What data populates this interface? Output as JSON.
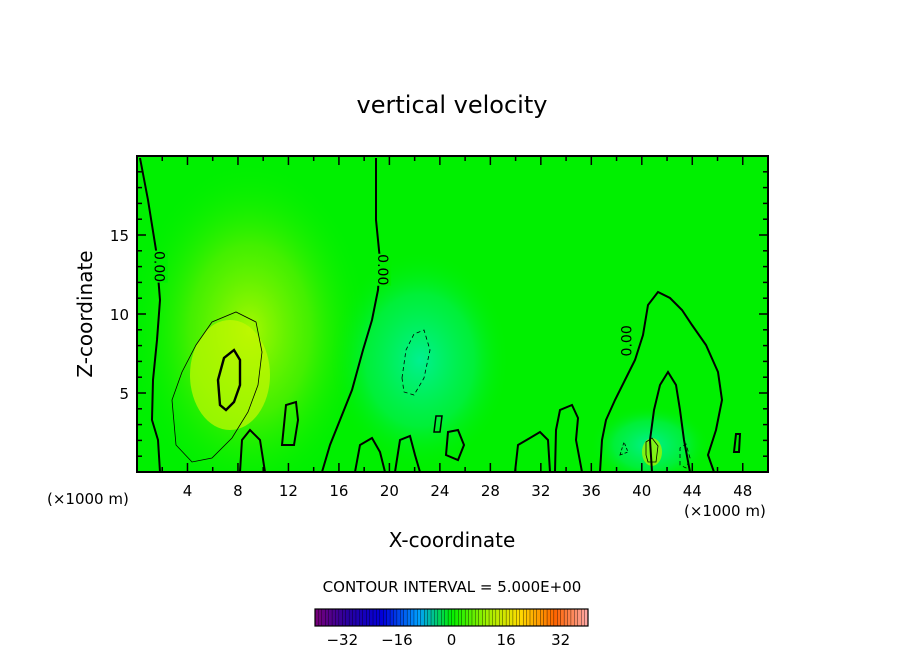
{
  "chart_data": {
    "type": "contour",
    "title": "vertical velocity",
    "xlabel": "X-coordinate",
    "ylabel": "Z-coordinate",
    "x_unit": "(×1000 m)",
    "xlim": [
      0,
      50
    ],
    "ylim": [
      0,
      20
    ],
    "x_ticks": [
      "4",
      "8",
      "12",
      "16",
      "20",
      "24",
      "28",
      "32",
      "36",
      "40",
      "44",
      "48"
    ],
    "y_ticks": [
      "5",
      "10",
      "15"
    ],
    "contour_interval_text": "CONTOUR INTERVAL = 5.000E+00",
    "contour_labels": [
      {
        "text": "0.00",
        "x": 1.8,
        "z": 13.0
      },
      {
        "text": "0.00",
        "x": 19.5,
        "z": 12.8
      },
      {
        "text": "0.00",
        "x": 38.8,
        "z": 8.3
      }
    ],
    "colorbar": {
      "min": -40,
      "max": 40,
      "ticks": [
        "−32",
        "−16",
        "0",
        "16",
        "32"
      ],
      "tick_values": [
        -32,
        -16,
        0,
        16,
        32
      ]
    },
    "max_region": {
      "x": 7.5,
      "z": 6.5,
      "value": 5
    }
  }
}
